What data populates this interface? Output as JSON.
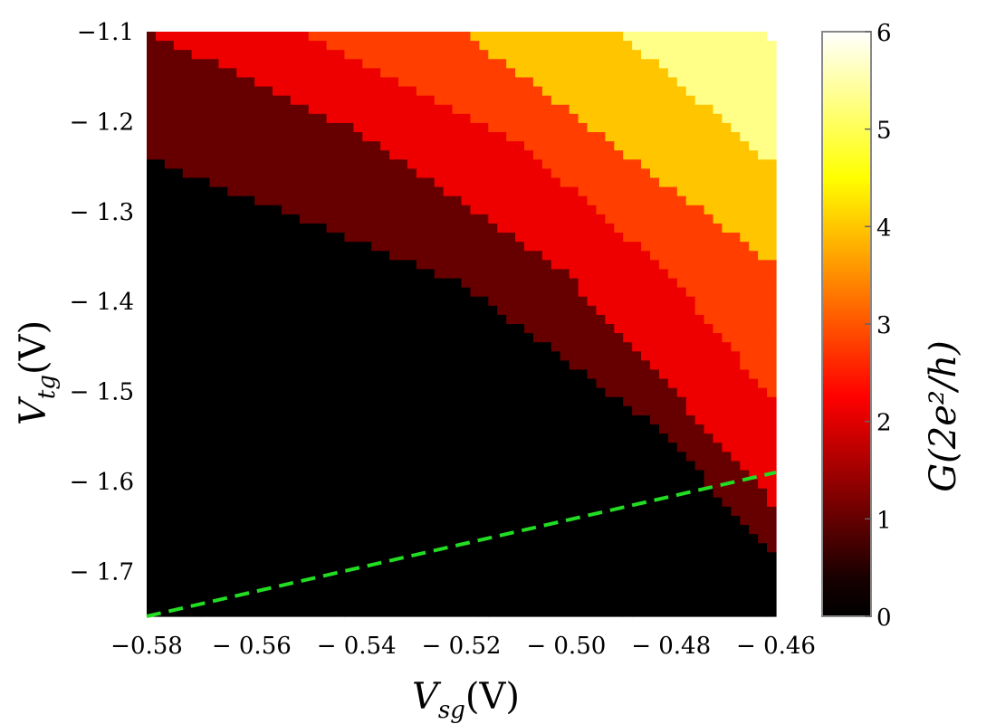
{
  "chart_data": {
    "type": "heatmap",
    "title": "",
    "xlabel": {
      "main": "V",
      "sub": "sg",
      "unit": "(V)"
    },
    "ylabel": {
      "main": "V",
      "sub": "tg",
      "unit": "(V)"
    },
    "colorbar_label": "G(2e²/h)",
    "xlim": [
      -0.58,
      -0.46
    ],
    "ylim": [
      -1.75,
      -1.1
    ],
    "x_ticks": [
      -0.58,
      -0.56,
      -0.54,
      -0.52,
      -0.5,
      -0.48,
      -0.46
    ],
    "x_tick_labels": [
      "−0.58",
      "− 0.56",
      "− 0.54",
      "− 0.52",
      "− 0.50",
      "− 0.48",
      "− 0.46"
    ],
    "y_ticks": [
      -1.1,
      -1.2,
      -1.3,
      -1.4,
      -1.5,
      -1.6,
      -1.7
    ],
    "y_tick_labels": [
      "−1.1",
      "− 1.2",
      "− 1.3",
      "− 1.4",
      "− 1.5",
      "− 1.6",
      "− 1.7"
    ],
    "colorbar_range": [
      0,
      6
    ],
    "colorbar_ticks": [
      0,
      1,
      2,
      3,
      4,
      5,
      6
    ],
    "colorbar_tick_labels": [
      "0",
      "1",
      "2",
      "3",
      "4",
      "5",
      "6"
    ],
    "colormap": "hot",
    "plateau_levels": [
      0,
      0.9,
      2.1,
      2.8,
      4.0,
      5.3,
      6.0
    ],
    "plateau_boundaries": [
      {
        "between": [
          0,
          1
        ],
        "points": [
          [
            -0.58,
            -1.24
          ],
          [
            -0.52,
            -1.38
          ],
          [
            -0.485,
            -1.53
          ],
          [
            -0.465,
            -1.65
          ],
          [
            -0.46,
            -1.68
          ]
        ]
      },
      {
        "between": [
          1,
          2
        ],
        "points": [
          [
            -0.58,
            -1.1
          ],
          [
            -0.54,
            -1.21
          ],
          [
            -0.5,
            -1.37
          ],
          [
            -0.475,
            -1.53
          ],
          [
            -0.46,
            -1.63
          ]
        ]
      },
      {
        "between": [
          2,
          3
        ],
        "points": [
          [
            -0.55,
            -1.1
          ],
          [
            -0.51,
            -1.22
          ],
          [
            -0.48,
            -1.37
          ],
          [
            -0.465,
            -1.48
          ],
          [
            -0.46,
            -1.51
          ]
        ]
      },
      {
        "between": [
          3,
          4
        ],
        "points": [
          [
            -0.52,
            -1.1
          ],
          [
            -0.49,
            -1.23
          ],
          [
            -0.465,
            -1.34
          ],
          [
            -0.46,
            -1.36
          ]
        ]
      },
      {
        "between": [
          4,
          5
        ],
        "points": [
          [
            -0.49,
            -1.1
          ],
          [
            -0.47,
            -1.2
          ],
          [
            -0.46,
            -1.25
          ]
        ]
      },
      {
        "between": [
          5,
          6
        ],
        "points": [
          [
            -0.46,
            -1.1
          ]
        ]
      }
    ],
    "annotations": [
      {
        "type": "dashed-line",
        "color": "#22dd22",
        "points": [
          [
            -0.58,
            -1.75
          ],
          [
            -0.46,
            -1.59
          ]
        ]
      }
    ],
    "grid": false,
    "legend": "none"
  }
}
